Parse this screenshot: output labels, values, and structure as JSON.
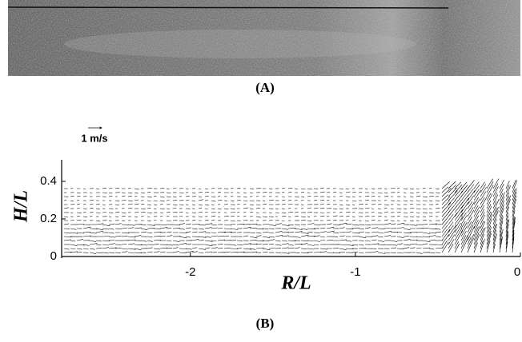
{
  "panel_a": {
    "label": "(A)"
  },
  "chart_data": {
    "type": "quiver",
    "panel_label": "(B)",
    "scale_label": "1 m/s",
    "xlabel": "R/L",
    "ylabel": "H/L",
    "xlim": [
      -2.78,
      0
    ],
    "ylim": [
      0,
      0.5
    ],
    "xticks": [
      -2,
      -1,
      0
    ],
    "yticks": [
      0,
      0.2,
      0.4
    ]
  }
}
